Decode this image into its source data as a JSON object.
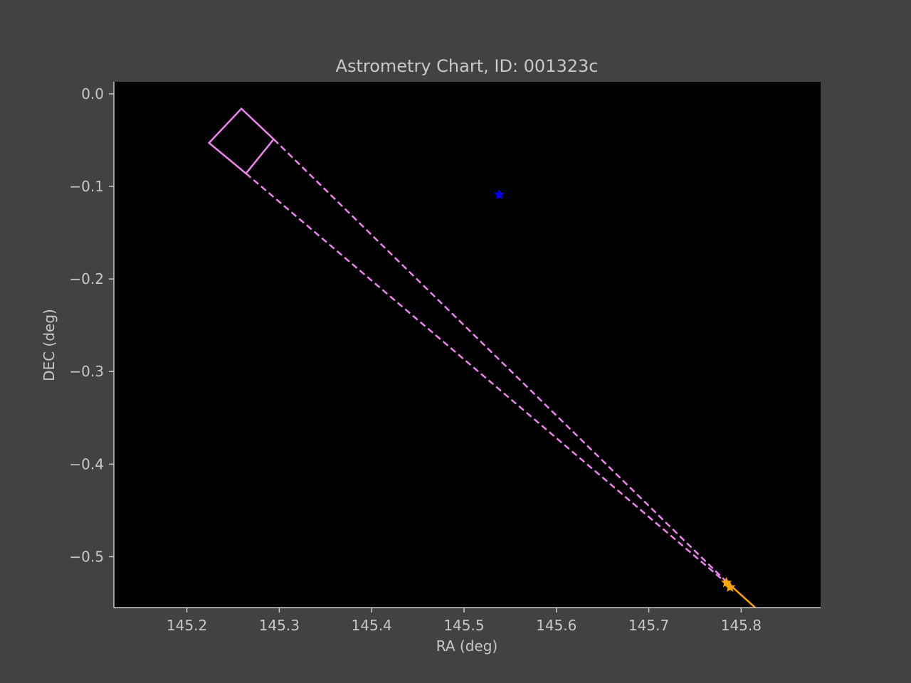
{
  "colors": {
    "figure_background": "#424242",
    "plot_background": "#000000",
    "text": "#c8c8c8",
    "spines": "#c8c8c8"
  },
  "chart_data": {
    "type": "scatter",
    "title": "Astrometry Chart, ID: 001323c",
    "xlabel": "RA (deg)",
    "ylabel": "DEC (deg)",
    "xlim": [
      145.121,
      145.886
    ],
    "ylim": [
      -0.555,
      0.013
    ],
    "x_ticks": [
      145.2,
      145.3,
      145.4,
      145.5,
      145.6,
      145.7,
      145.8
    ],
    "x_tick_labels": [
      "145.2",
      "145.3",
      "145.4",
      "145.5",
      "145.6",
      "145.7",
      "145.8"
    ],
    "y_ticks": [
      0.0,
      -0.1,
      -0.2,
      -0.3,
      -0.4,
      -0.5
    ],
    "y_tick_labels": [
      "0.0",
      "−0.1",
      "−0.2",
      "−0.3",
      "−0.4",
      "−0.5"
    ],
    "grid": false,
    "legend": "none",
    "field_of_view": {
      "color": "#ee82ee",
      "corners": [
        [
          145.259,
          -0.016
        ],
        [
          145.294,
          -0.049
        ],
        [
          145.264,
          -0.086
        ],
        [
          145.224,
          -0.053
        ]
      ]
    },
    "projection_lines": {
      "color": "#ee82ee",
      "style": "dashed",
      "lines": [
        [
          [
            145.294,
            -0.049
          ],
          [
            145.784,
            -0.527
          ]
        ],
        [
          [
            145.264,
            -0.086
          ],
          [
            145.787,
            -0.531
          ]
        ]
      ]
    },
    "markers": [
      {
        "x": 145.538,
        "y": -0.109,
        "color": "#0000ff",
        "shape": "star"
      },
      {
        "x": 145.784,
        "y": -0.528,
        "color": "#ffa500",
        "shape": "star"
      },
      {
        "x": 145.788,
        "y": -0.533,
        "color": "#ffa500",
        "shape": "star"
      }
    ],
    "trajectory": {
      "color": "#ffa500",
      "points": [
        [
          145.784,
          -0.527
        ],
        [
          145.823,
          -0.562
        ]
      ]
    }
  }
}
